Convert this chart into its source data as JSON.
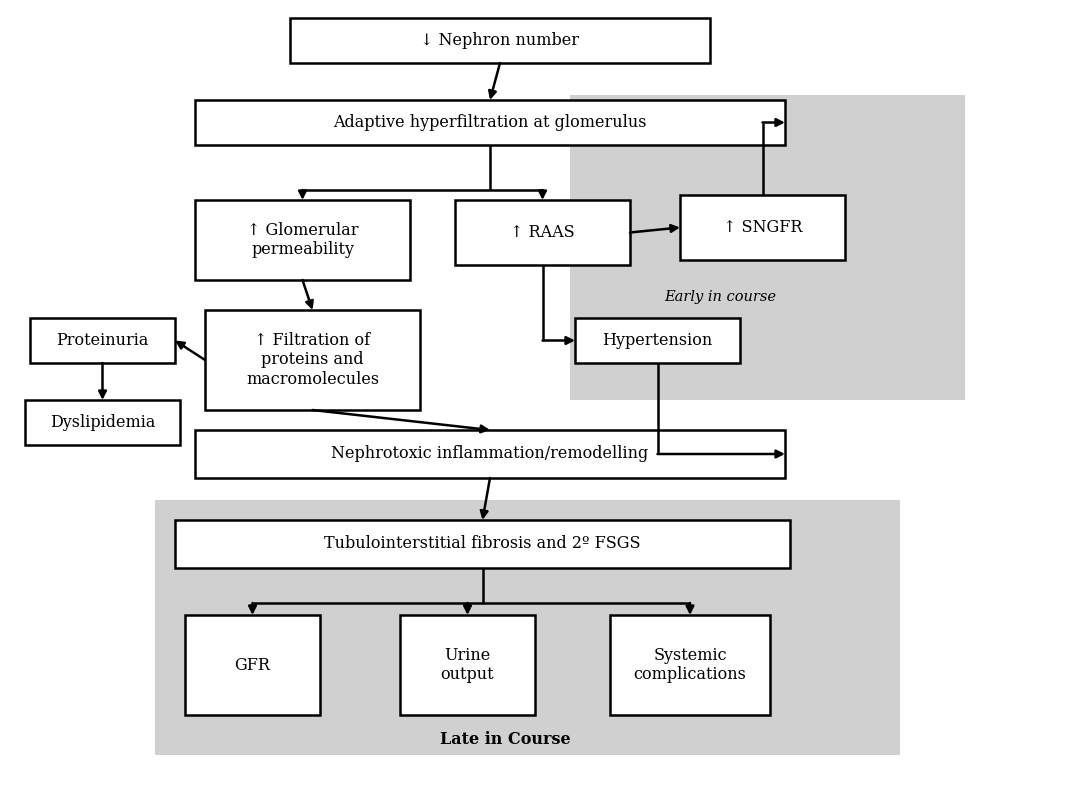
{
  "fig_width": 10.68,
  "fig_height": 7.85,
  "dpi": 100,
  "bg_color": "#ffffff",
  "gray_color": "#d0d0d0",
  "box_color": "#ffffff",
  "box_edge": "#000000",
  "lw": 1.8,
  "fontsize": 11.5,
  "fontfamily": "DejaVu Serif",
  "early_bg": [
    570,
    95,
    395,
    305
  ],
  "late_bg": [
    155,
    500,
    745,
    255
  ],
  "boxes": {
    "nephron": [
      290,
      18,
      420,
      45,
      "↓ Nephron number"
    ],
    "adaptive": [
      195,
      100,
      590,
      45,
      "Adaptive hyperfiltration at glomerulus"
    ],
    "glomerular": [
      195,
      200,
      215,
      80,
      "↑ Glomerular\npermeability"
    ],
    "raas": [
      455,
      200,
      175,
      65,
      "↑ RAAS"
    ],
    "sngfr": [
      680,
      195,
      165,
      65,
      "↑ SNGFR"
    ],
    "filtration": [
      205,
      310,
      215,
      100,
      "↑ Filtration of\nproteins and\nmacromolecules"
    ],
    "proteinuria": [
      30,
      318,
      145,
      45,
      "Proteinuria"
    ],
    "dyslipidemia": [
      25,
      400,
      155,
      45,
      "Dyslipidemia"
    ],
    "hypertension": [
      575,
      318,
      165,
      45,
      "Hypertension"
    ],
    "nephrotoxic": [
      195,
      430,
      590,
      48,
      "Nephrotoxic inflammation/remodelling"
    ],
    "tubulointerstitial": [
      175,
      520,
      615,
      48,
      "Tubulointerstitial fibrosis and 2º FSGS"
    ],
    "gfr": [
      185,
      615,
      135,
      100,
      "GFR"
    ],
    "urine": [
      400,
      615,
      135,
      100,
      "Urine\noutput"
    ],
    "systemic": [
      610,
      615,
      160,
      100,
      "Systemic\ncomplications"
    ]
  },
  "label_early": [
    720,
    297,
    "Early in course"
  ],
  "label_late": [
    505,
    740,
    "Late in Course"
  ],
  "note_fontsize": 10.5,
  "late_bold": true
}
